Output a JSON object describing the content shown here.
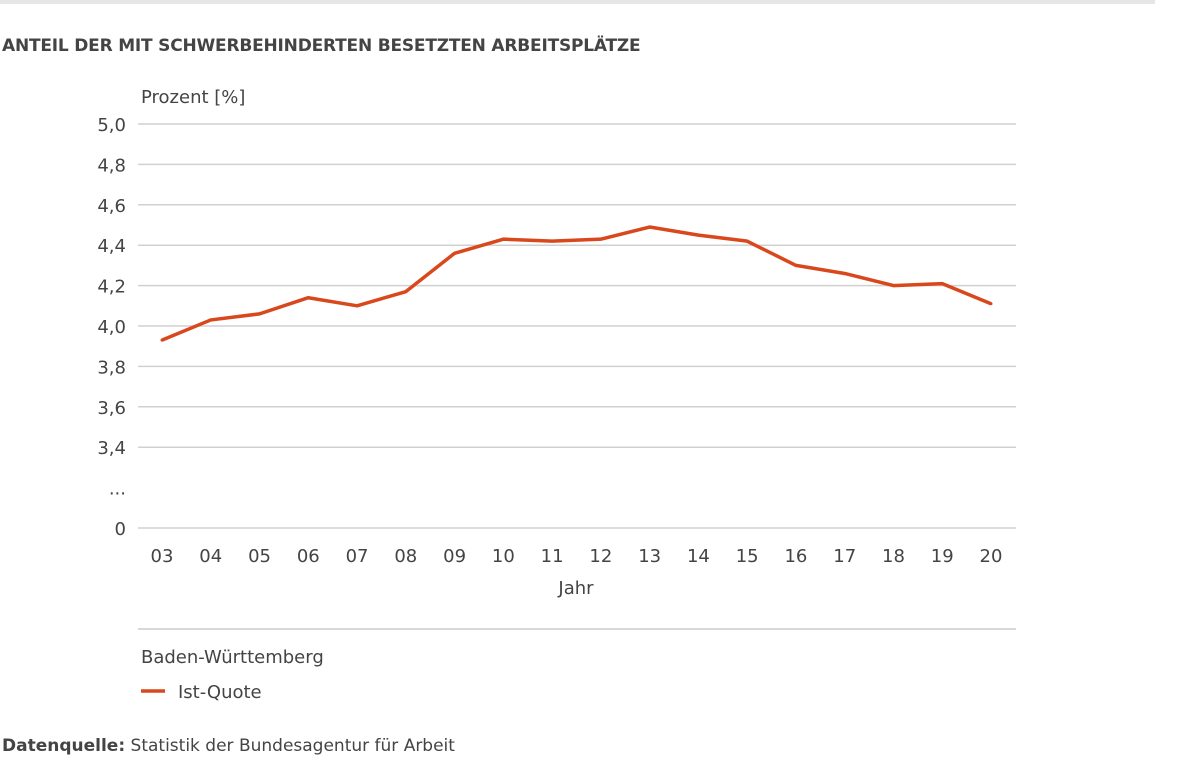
{
  "title": "ANTEIL DER MIT SCHWERBEHINDERTEN BESETZTEN ARBEITSPLÄTZE",
  "source_label": "Datenquelle:",
  "source_text": "Statistik der Bundesagentur für Arbeit",
  "chart_data": {
    "type": "line",
    "ylabel": "Prozent [%]",
    "xlabel": "Jahr",
    "region": "Baden-Württemberg",
    "ylim": [
      3.4,
      5.0
    ],
    "y_axis_break": true,
    "y_ticks": [
      "5,0",
      "4,8",
      "4,6",
      "4,4",
      "4,2",
      "4,0",
      "3,8",
      "3,6",
      "3,4",
      "...",
      "0"
    ],
    "categories": [
      "03",
      "04",
      "05",
      "06",
      "07",
      "08",
      "09",
      "10",
      "11",
      "12",
      "13",
      "14",
      "15",
      "16",
      "17",
      "18",
      "19",
      "20"
    ],
    "series": [
      {
        "name": "Ist-Quote",
        "color": "#d9481c",
        "values": [
          3.93,
          4.03,
          4.06,
          4.14,
          4.1,
          4.17,
          4.36,
          4.43,
          4.42,
          4.43,
          4.49,
          4.45,
          4.42,
          4.3,
          4.26,
          4.2,
          4.21,
          4.11
        ]
      }
    ],
    "grid": true,
    "legend": "bottom-left"
  }
}
